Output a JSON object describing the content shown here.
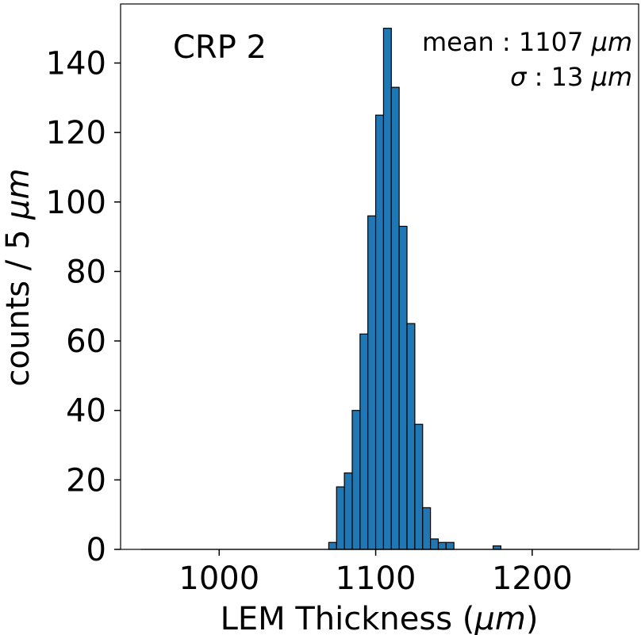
{
  "chart_data": {
    "type": "bar",
    "xlabel": "LEM Thickness (",
    "xlabel_unit": "μm",
    "xlabel_close": ")",
    "ylabel": "counts / 5 ",
    "ylabel_unit": "μm",
    "xlim": [
      937,
      1268
    ],
    "ylim": [
      0,
      157
    ],
    "x_ticks": [
      1000,
      1100,
      1200
    ],
    "y_ticks": [
      0,
      20,
      40,
      60,
      80,
      100,
      120,
      140
    ],
    "bin_width": 5,
    "x_start": 950,
    "x_end": 1250,
    "bars": [
      {
        "x0": 1070,
        "x1": 1075,
        "y": 2
      },
      {
        "x0": 1075,
        "x1": 1080,
        "y": 18
      },
      {
        "x0": 1080,
        "x1": 1085,
        "y": 22
      },
      {
        "x0": 1085,
        "x1": 1090,
        "y": 40
      },
      {
        "x0": 1090,
        "x1": 1095,
        "y": 62
      },
      {
        "x0": 1095,
        "x1": 1100,
        "y": 96
      },
      {
        "x0": 1100,
        "x1": 1105,
        "y": 125
      },
      {
        "x0": 1105,
        "x1": 1110,
        "y": 150
      },
      {
        "x0": 1110,
        "x1": 1115,
        "y": 133
      },
      {
        "x0": 1115,
        "x1": 1120,
        "y": 93
      },
      {
        "x0": 1120,
        "x1": 1125,
        "y": 65
      },
      {
        "x0": 1125,
        "x1": 1130,
        "y": 36
      },
      {
        "x0": 1130,
        "x1": 1135,
        "y": 12
      },
      {
        "x0": 1135,
        "x1": 1140,
        "y": 3
      },
      {
        "x0": 1140,
        "x1": 1145,
        "y": 2
      },
      {
        "x0": 1145,
        "x1": 1150,
        "y": 2
      },
      {
        "x0": 1175,
        "x1": 1180,
        "y": 1
      }
    ],
    "bar_color": "#1f77b4",
    "edge_color": "#000000",
    "annotations": {
      "label": "CRP 2",
      "mean_prefix": "mean : 1107 ",
      "mean_unit": "μm",
      "sigma_symbol": "σ",
      "sigma_value": " : 13 ",
      "sigma_unit": "μm"
    },
    "grid": false
  }
}
